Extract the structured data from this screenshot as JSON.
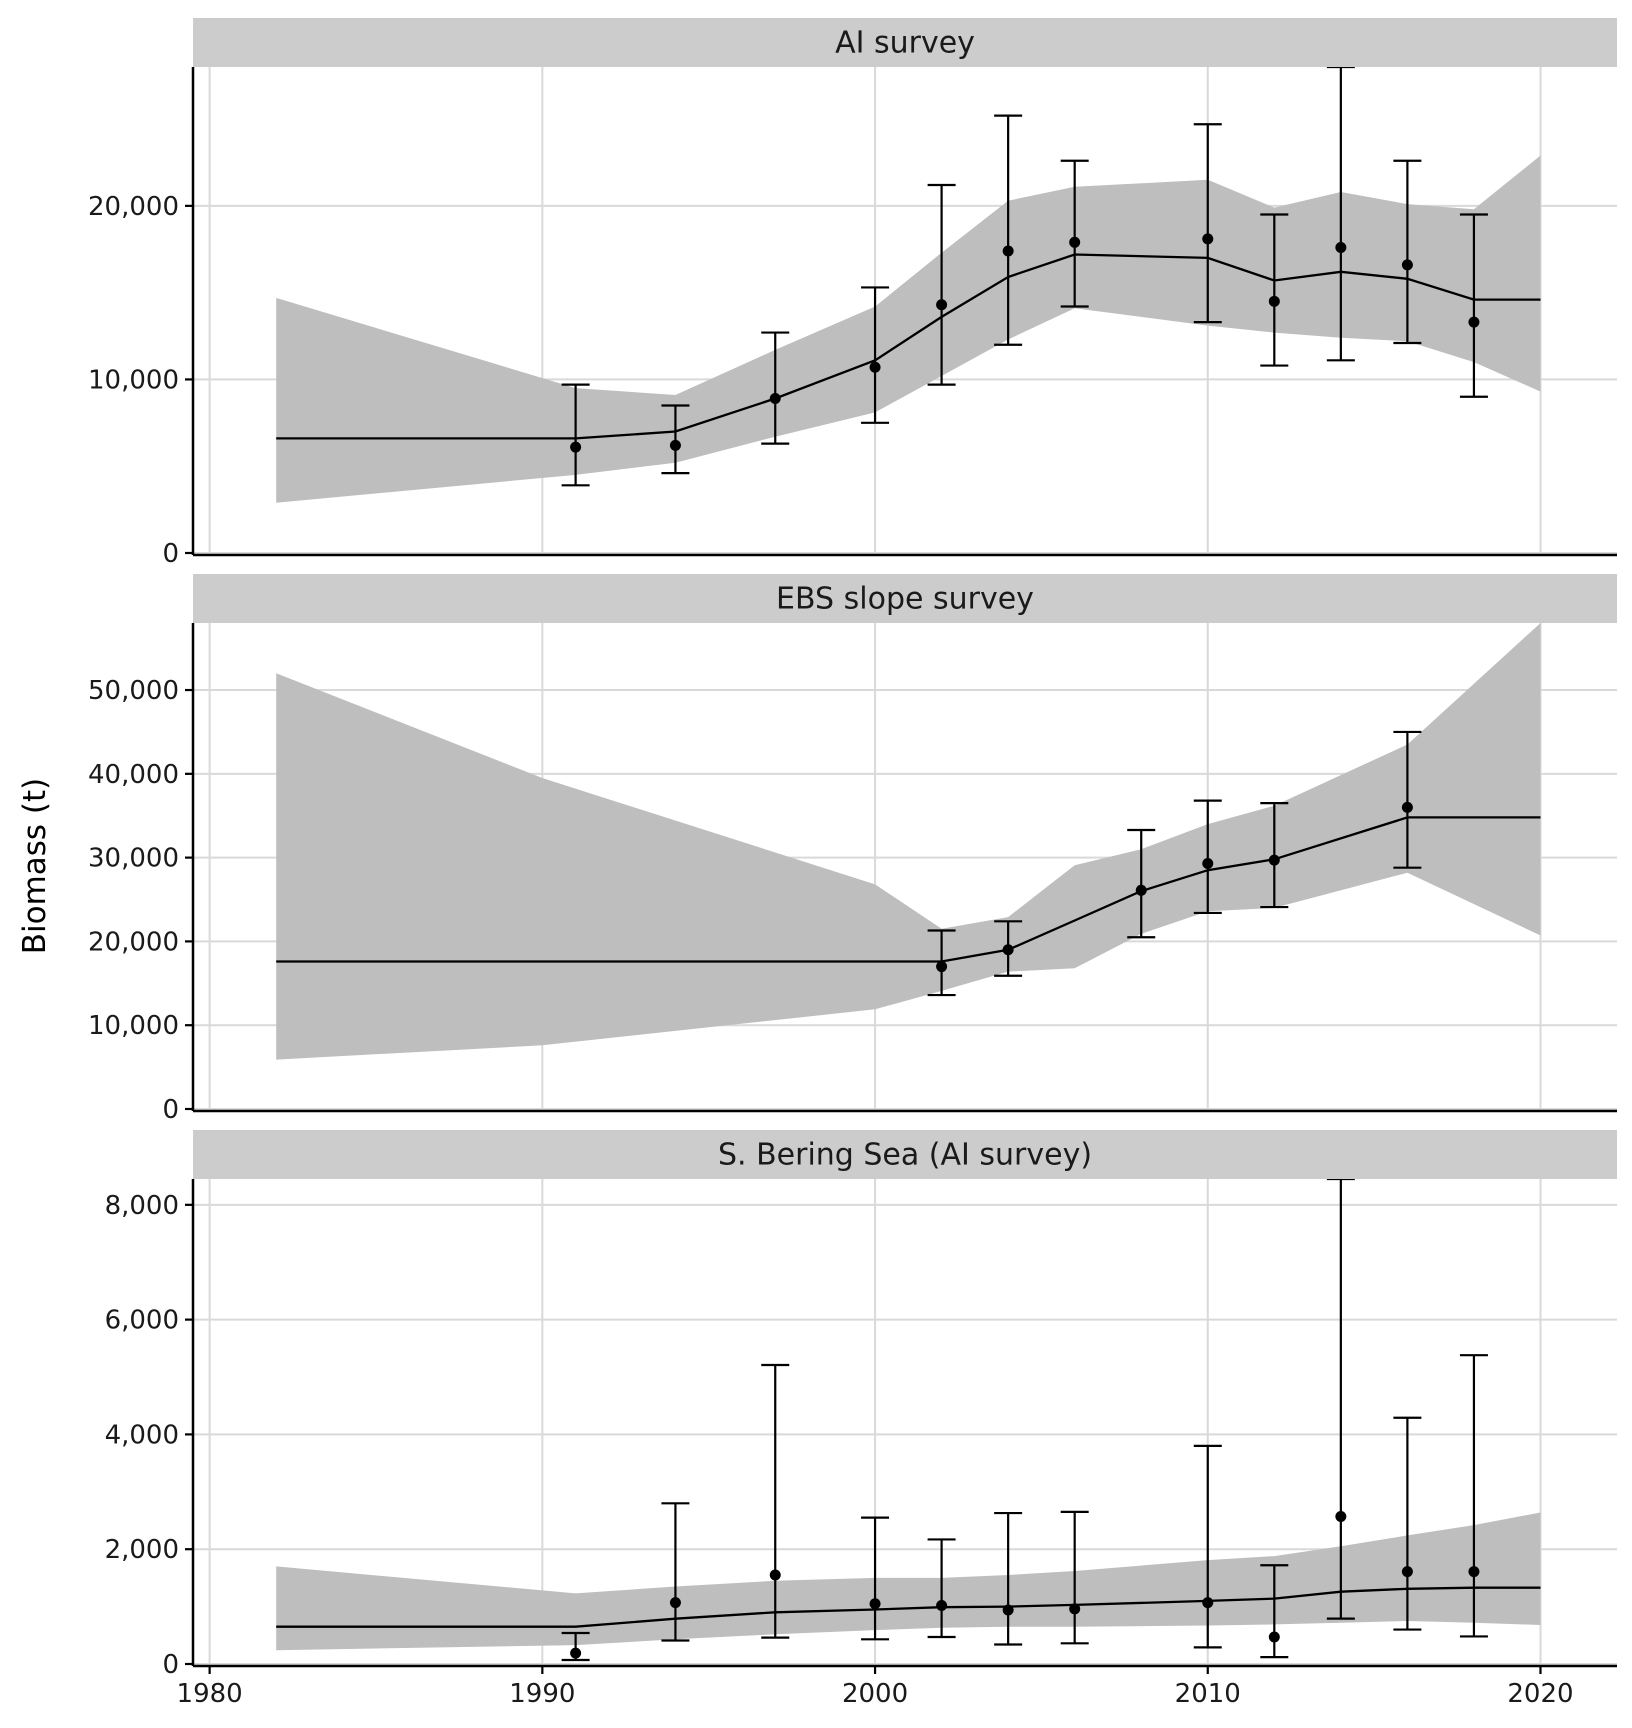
{
  "chart_data": {
    "type": "line",
    "ylabel": "Biomass (t)",
    "xlabel": "",
    "xlim": [
      1979.5,
      2022.3
    ],
    "x_ticks": [
      1980,
      1990,
      2000,
      2010,
      2020
    ],
    "x_tick_labels": [
      "1980",
      "1990",
      "2000",
      "2010",
      "2020"
    ],
    "grid": true,
    "colors": {
      "ribbon": "#bebebe",
      "line": "#000000",
      "grid": "#d9d9d9",
      "strip": "#cccccc"
    },
    "panels": [
      {
        "title": "AI survey",
        "ylim": [
          0,
          28000
        ],
        "y_ticks": [
          0,
          10000,
          20000
        ],
        "y_tick_labels": [
          "0",
          "10,000",
          "20,000"
        ],
        "model": {
          "x": [
            1982,
            1991,
            1994,
            1997,
            2000,
            2002,
            2004,
            2006,
            2010,
            2012,
            2014,
            2016,
            2018,
            2020
          ],
          "y": [
            6600,
            6600,
            7000,
            8900,
            11100,
            13600,
            15900,
            17200,
            17000,
            15700,
            16200,
            15800,
            14600,
            14600
          ],
          "lower": [
            2900,
            4500,
            5200,
            6700,
            8100,
            10200,
            12300,
            14100,
            13100,
            12700,
            12400,
            12200,
            11000,
            9300
          ],
          "upper": [
            14700,
            9500,
            9100,
            11700,
            14200,
            17300,
            20300,
            21100,
            21500,
            19900,
            20800,
            20100,
            19800,
            22900
          ]
        },
        "observed": {
          "x": [
            1991,
            1994,
            1997,
            2000,
            2002,
            2004,
            2006,
            2010,
            2012,
            2014,
            2016,
            2018
          ],
          "y": [
            6100,
            6200,
            8900,
            10700,
            14300,
            17400,
            17900,
            18100,
            14500,
            17600,
            16600,
            13300
          ],
          "lower": [
            3900,
            4600,
            6300,
            7500,
            9700,
            12000,
            14200,
            13300,
            10800,
            11100,
            12100,
            9000
          ],
          "upper": [
            9700,
            8500,
            12700,
            15300,
            21200,
            25200,
            22600,
            24700,
            19500,
            28000,
            22600,
            19500
          ]
        }
      },
      {
        "title": "EBS slope survey",
        "ylim": [
          0,
          58000
        ],
        "y_ticks": [
          0,
          10000,
          20000,
          30000,
          40000,
          50000
        ],
        "y_tick_labels": [
          "0",
          "10,000",
          "20,000",
          "30,000",
          "40,000",
          "50,000"
        ],
        "model": {
          "x": [
            1982,
            1990,
            2000,
            2002,
            2004,
            2006,
            2008,
            2010,
            2012,
            2016,
            2020
          ],
          "y": [
            17600,
            17600,
            17600,
            17600,
            19000,
            22500,
            26000,
            28500,
            29800,
            34800,
            34800
          ],
          "lower": [
            5900,
            7600,
            11900,
            14100,
            16400,
            16800,
            20900,
            23600,
            24000,
            28200,
            20700
          ],
          "upper": [
            52000,
            39500,
            26800,
            21500,
            22900,
            29100,
            31000,
            34000,
            36200,
            43500,
            58000
          ]
        },
        "observed": {
          "x": [
            2002,
            2004,
            2008,
            2010,
            2012,
            2016
          ],
          "y": [
            17000,
            19000,
            26100,
            29300,
            29700,
            36000
          ],
          "lower": [
            13600,
            15900,
            20500,
            23400,
            24100,
            28800
          ],
          "upper": [
            21300,
            22400,
            33300,
            36800,
            36500,
            45000
          ]
        }
      },
      {
        "title": "S. Bering Sea (AI survey)",
        "ylim": [
          0,
          8450
        ],
        "y_ticks": [
          0,
          2000,
          4000,
          6000,
          8000
        ],
        "y_tick_labels": [
          "0",
          "2,000",
          "4,000",
          "6,000",
          "8,000"
        ],
        "model": {
          "x": [
            1982,
            1991,
            1994,
            1997,
            2000,
            2002,
            2004,
            2006,
            2010,
            2012,
            2014,
            2016,
            2018,
            2020
          ],
          "y": [
            650,
            650,
            790,
            900,
            950,
            990,
            1000,
            1030,
            1100,
            1140,
            1260,
            1310,
            1330,
            1330
          ],
          "lower": [
            240,
            330,
            430,
            520,
            590,
            630,
            650,
            650,
            670,
            690,
            720,
            750,
            720,
            680
          ],
          "upper": [
            1700,
            1230,
            1350,
            1450,
            1500,
            1500,
            1550,
            1620,
            1810,
            1880,
            2050,
            2240,
            2420,
            2640
          ]
        },
        "observed": {
          "x": [
            1991,
            1994,
            1997,
            2000,
            2002,
            2004,
            2006,
            2010,
            2012,
            2014,
            2016,
            2018
          ],
          "y": [
            190,
            1070,
            1550,
            1050,
            1020,
            940,
            960,
            1070,
            470,
            2570,
            1610,
            1610
          ],
          "lower": [
            70,
            410,
            460,
            430,
            470,
            340,
            360,
            290,
            120,
            790,
            600,
            480
          ],
          "upper": [
            540,
            2800,
            5210,
            2550,
            2170,
            2630,
            2650,
            3800,
            1720,
            8450,
            4290,
            5380
          ]
        }
      }
    ]
  }
}
